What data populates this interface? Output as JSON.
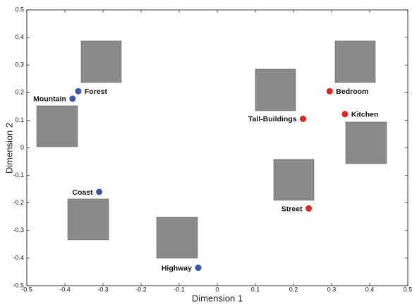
{
  "chart_data": {
    "type": "scatter",
    "x_label": "Dimension 1",
    "y_label": "Dimension 2",
    "xlim": [
      -0.5,
      0.5
    ],
    "ylim": [
      -0.5,
      0.5
    ],
    "xticks": [
      -0.5,
      -0.4,
      -0.3,
      -0.2,
      -0.1,
      0,
      0.1,
      0.2,
      0.3,
      0.4,
      0.5
    ],
    "yticks": [
      -0.5,
      -0.4,
      -0.3,
      -0.2,
      -0.1,
      0,
      0.1,
      0.2,
      0.3,
      0.4,
      0.5
    ],
    "series": [
      {
        "color": "#3a56a8",
        "x": [
          -0.365,
          -0.38,
          -0.31,
          -0.05
        ],
        "values": [
          0.205,
          0.178,
          -0.16,
          -0.435
        ],
        "labels": [
          "Forest",
          "Mountain",
          "Coast",
          "Highway"
        ]
      },
      {
        "color": "#e32222",
        "x": [
          0.225,
          0.295,
          0.335,
          0.24
        ],
        "values": [
          0.105,
          0.205,
          0.122,
          -0.22
        ],
        "labels": [
          "Tall-Buildings",
          "Bedroom",
          "Kitchen",
          "Street"
        ]
      }
    ]
  }
}
